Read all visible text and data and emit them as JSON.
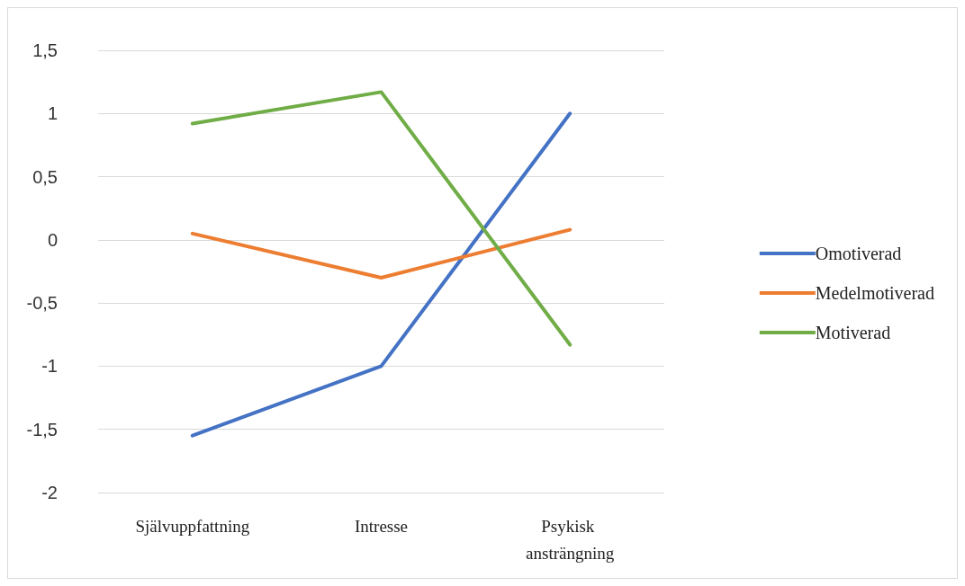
{
  "chart_data": {
    "type": "line",
    "categories": [
      "Självuppfattning",
      "Intresse",
      "Psykisk ansträngning"
    ],
    "series": [
      {
        "name": "Omotiverad",
        "color": "#4472c4",
        "values": [
          -1.55,
          -1,
          1
        ]
      },
      {
        "name": "Medelmotiverad",
        "color": "#ed7d31",
        "values": [
          0.05,
          -0.3,
          0.08
        ]
      },
      {
        "name": "Motiverad",
        "color": "#70ad47",
        "values": [
          0.92,
          1.17,
          -0.83
        ]
      }
    ],
    "ylim": [
      -2,
      1.5
    ],
    "yticks": [
      -2,
      {
        "value": -1.5,
        "label": "-1,5"
      },
      -1,
      {
        "value": -0.5,
        "label": "-0,5"
      },
      0,
      {
        "value": 0.5,
        "label": "0,5"
      },
      1,
      {
        "value": 1.5,
        "label": "1,5"
      }
    ],
    "grid": "y",
    "legend": "right",
    "marker": "none",
    "line_style": "solid"
  }
}
